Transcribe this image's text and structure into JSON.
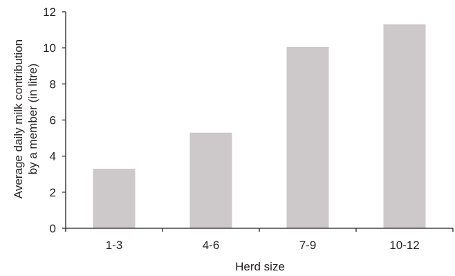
{
  "chart_data": {
    "type": "bar",
    "categories": [
      "1-3",
      "4-6",
      "7-9",
      "10-12"
    ],
    "values": [
      3.3,
      5.3,
      10.05,
      11.3
    ],
    "title": "",
    "xlabel": "Herd size",
    "ylabel_lines": [
      "Average daily milk contribution",
      "by a member (in litre)"
    ],
    "ylim": [
      0,
      12
    ],
    "yticks": [
      "0",
      "2",
      "4",
      "6",
      "8",
      "10",
      "12"
    ],
    "bar_color": "#cdc8c9",
    "axis_color": "#231f20",
    "grid": false,
    "legend": "none"
  }
}
